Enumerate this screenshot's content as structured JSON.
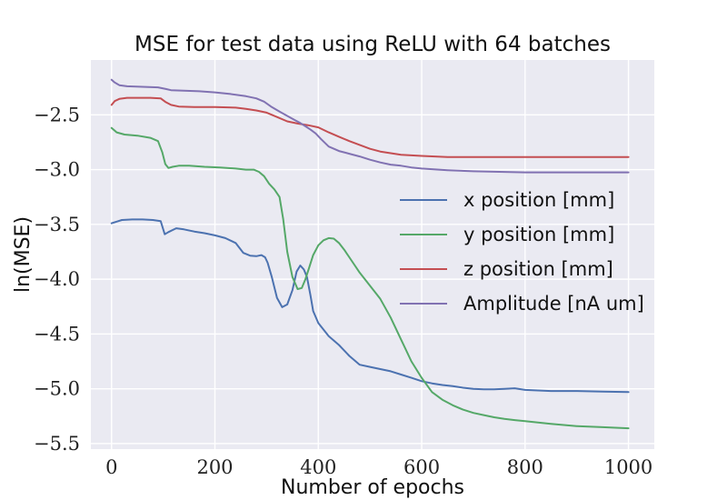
{
  "chart_data": {
    "type": "line",
    "title": "MSE for test data using ReLU with 64 batches",
    "xlabel": "Number of epochs",
    "ylabel": "ln(MSE)",
    "xlim": [
      -40,
      1050
    ],
    "ylim": [
      -5.55,
      -2.0
    ],
    "xticks": [
      0,
      200,
      400,
      600,
      800,
      1000
    ],
    "xtick_labels": [
      "0",
      "200",
      "400",
      "600",
      "800",
      "1000"
    ],
    "yticks": [
      -2.5,
      -3.0,
      -3.5,
      -4.0,
      -4.5,
      -5.0,
      -5.5
    ],
    "ytick_labels": [
      "−2.5",
      "−3.0",
      "−3.5",
      "−4.0",
      "−4.5",
      "−5.0",
      "−5.5"
    ],
    "grid": true,
    "legend_position": "center-right",
    "series": [
      {
        "name": "x position [mm]",
        "color": "#4c72b0",
        "x": [
          0,
          20,
          40,
          60,
          80,
          95,
          103,
          110,
          125,
          140,
          160,
          180,
          200,
          220,
          240,
          255,
          268,
          280,
          290,
          297,
          302,
          310,
          320,
          330,
          340,
          350,
          358,
          365,
          372,
          378,
          385,
          390,
          400,
          420,
          440,
          460,
          480,
          500,
          520,
          540,
          560,
          580,
          600,
          620,
          640,
          660,
          680,
          700,
          720,
          740,
          760,
          780,
          800,
          850,
          900,
          950,
          1000
        ],
        "y": [
          -3.49,
          -3.46,
          -3.455,
          -3.455,
          -3.46,
          -3.47,
          -3.59,
          -3.57,
          -3.535,
          -3.545,
          -3.565,
          -3.58,
          -3.6,
          -3.625,
          -3.67,
          -3.76,
          -3.785,
          -3.79,
          -3.78,
          -3.8,
          -3.85,
          -3.98,
          -4.17,
          -4.255,
          -4.23,
          -4.1,
          -3.93,
          -3.875,
          -3.91,
          -3.98,
          -4.15,
          -4.29,
          -4.4,
          -4.52,
          -4.6,
          -4.7,
          -4.78,
          -4.8,
          -4.82,
          -4.84,
          -4.87,
          -4.9,
          -4.93,
          -4.95,
          -4.965,
          -4.975,
          -4.99,
          -5.0,
          -5.005,
          -5.005,
          -5.0,
          -4.995,
          -5.01,
          -5.02,
          -5.02,
          -5.025,
          -5.03
        ]
      },
      {
        "name": "y position [mm]",
        "color": "#55a868",
        "x": [
          0,
          10,
          25,
          50,
          75,
          90,
          98,
          104,
          110,
          118,
          130,
          150,
          180,
          210,
          240,
          260,
          275,
          285,
          295,
          305,
          315,
          325,
          332,
          340,
          350,
          360,
          368,
          375,
          382,
          390,
          400,
          410,
          420,
          430,
          440,
          450,
          460,
          480,
          500,
          520,
          540,
          560,
          580,
          600,
          620,
          640,
          660,
          680,
          700,
          720,
          740,
          760,
          780,
          800,
          850,
          900,
          950,
          1000
        ],
        "y": [
          -2.62,
          -2.66,
          -2.68,
          -2.69,
          -2.71,
          -2.74,
          -2.84,
          -2.95,
          -2.985,
          -2.975,
          -2.965,
          -2.965,
          -2.975,
          -2.98,
          -2.99,
          -3.0,
          -3.0,
          -3.02,
          -3.06,
          -3.13,
          -3.18,
          -3.25,
          -3.45,
          -3.75,
          -3.98,
          -4.09,
          -4.08,
          -4.0,
          -3.9,
          -3.78,
          -3.69,
          -3.645,
          -3.625,
          -3.63,
          -3.67,
          -3.73,
          -3.8,
          -3.94,
          -4.06,
          -4.18,
          -4.35,
          -4.55,
          -4.75,
          -4.9,
          -5.03,
          -5.1,
          -5.15,
          -5.19,
          -5.22,
          -5.24,
          -5.26,
          -5.275,
          -5.285,
          -5.295,
          -5.32,
          -5.34,
          -5.35,
          -5.36
        ]
      },
      {
        "name": "z position [mm]",
        "color": "#c44e52",
        "x": [
          0,
          6,
          15,
          30,
          50,
          75,
          95,
          105,
          115,
          130,
          160,
          200,
          240,
          260,
          280,
          300,
          320,
          340,
          360,
          380,
          400,
          420,
          440,
          460,
          480,
          500,
          520,
          540,
          560,
          580,
          600,
          650,
          700,
          750,
          800,
          850,
          900,
          950,
          1000
        ],
        "y": [
          -2.41,
          -2.375,
          -2.355,
          -2.345,
          -2.345,
          -2.345,
          -2.35,
          -2.385,
          -2.41,
          -2.425,
          -2.43,
          -2.43,
          -2.435,
          -2.445,
          -2.46,
          -2.48,
          -2.52,
          -2.56,
          -2.58,
          -2.595,
          -2.615,
          -2.66,
          -2.7,
          -2.74,
          -2.775,
          -2.81,
          -2.835,
          -2.85,
          -2.865,
          -2.87,
          -2.875,
          -2.885,
          -2.885,
          -2.885,
          -2.885,
          -2.885,
          -2.885,
          -2.885,
          -2.885
        ]
      },
      {
        "name": "Amplitude [nA um]",
        "color": "#8172b2",
        "x": [
          0,
          6,
          15,
          30,
          60,
          90,
          105,
          115,
          140,
          170,
          200,
          230,
          260,
          280,
          295,
          310,
          325,
          340,
          355,
          365,
          375,
          385,
          395,
          405,
          420,
          440,
          460,
          480,
          500,
          520,
          540,
          560,
          580,
          600,
          650,
          700,
          750,
          800,
          850,
          900,
          950,
          1000
        ],
        "y": [
          -2.18,
          -2.205,
          -2.23,
          -2.24,
          -2.245,
          -2.25,
          -2.265,
          -2.275,
          -2.28,
          -2.285,
          -2.295,
          -2.31,
          -2.33,
          -2.35,
          -2.38,
          -2.43,
          -2.47,
          -2.51,
          -2.55,
          -2.575,
          -2.605,
          -2.635,
          -2.67,
          -2.72,
          -2.79,
          -2.83,
          -2.855,
          -2.88,
          -2.91,
          -2.935,
          -2.955,
          -2.965,
          -2.98,
          -2.99,
          -3.005,
          -3.015,
          -3.02,
          -3.025,
          -3.025,
          -3.025,
          -3.025,
          -3.025
        ]
      }
    ]
  }
}
